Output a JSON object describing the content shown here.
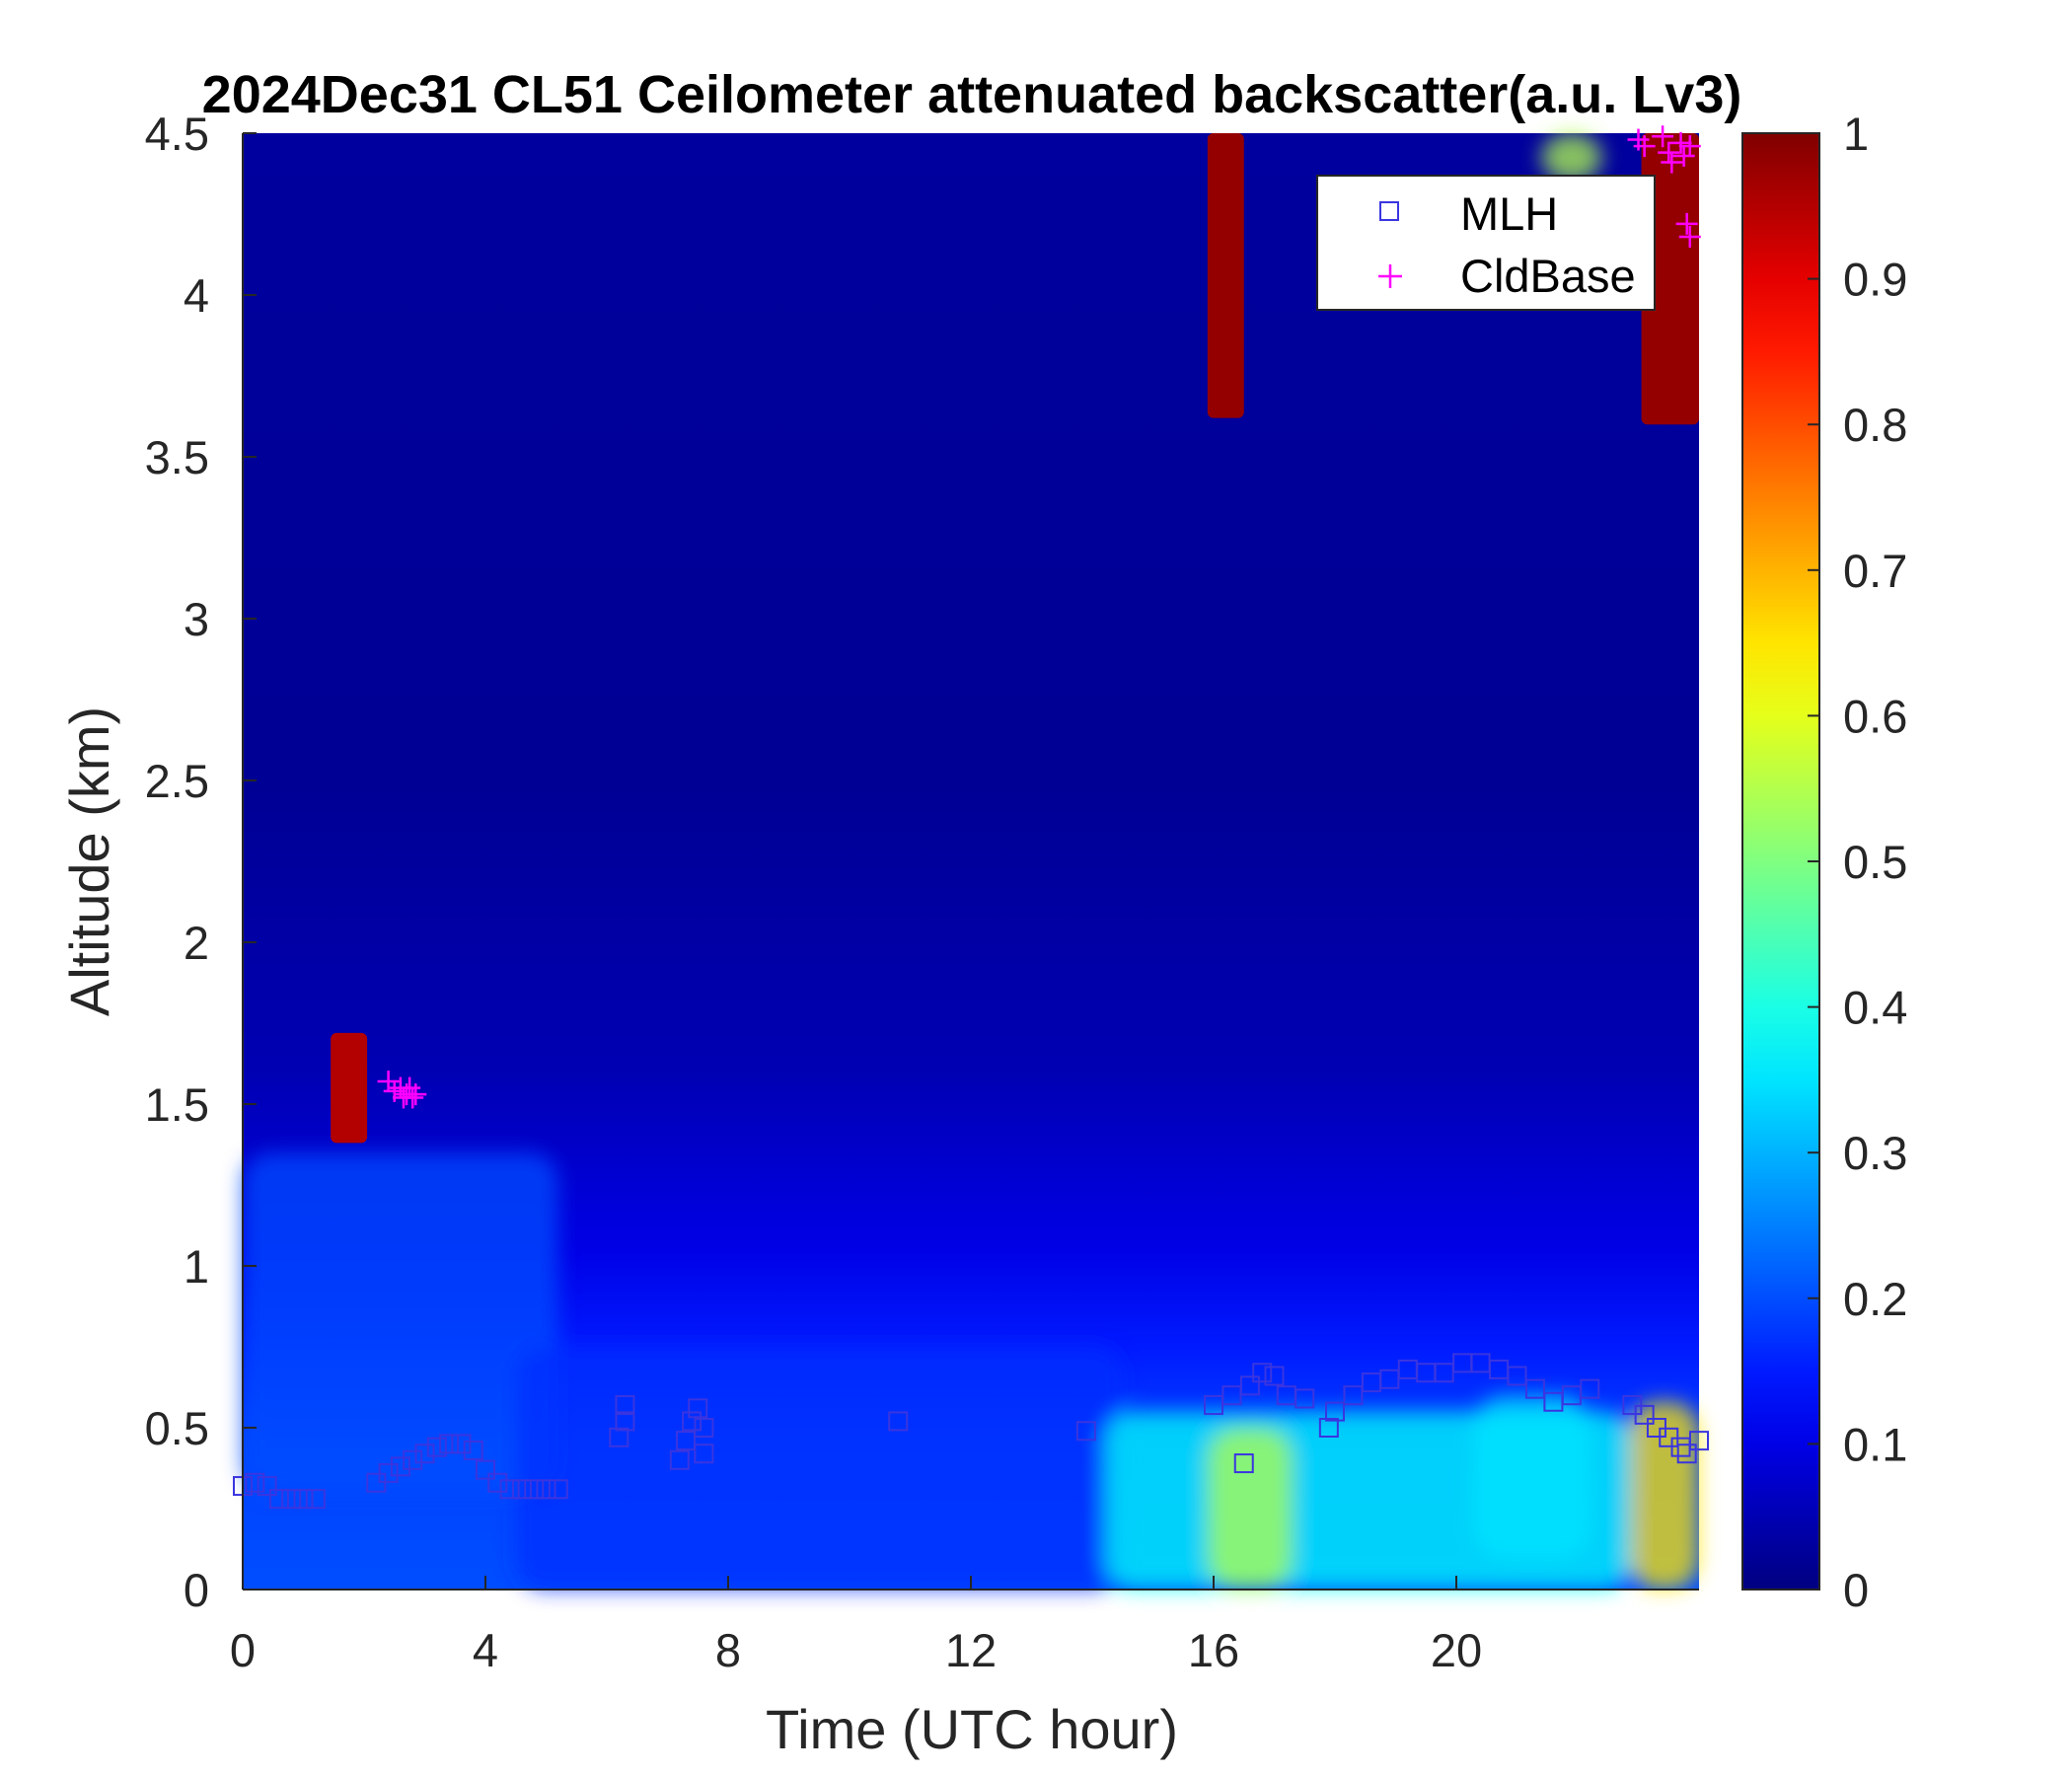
{
  "chart_data": {
    "type": "heatmap",
    "title": "2024Dec31 CL51 Ceilometer attenuated backscatter(a.u. Lv3)",
    "xlabel": "Time (UTC hour)",
    "ylabel": "Altitude (km)",
    "xlim": [
      0,
      24
    ],
    "ylim": [
      0,
      4.5
    ],
    "x_ticks": [
      0,
      4,
      8,
      12,
      16,
      20
    ],
    "x_tick_labels": [
      "0",
      "4",
      "8",
      "12",
      "16",
      "20"
    ],
    "y_ticks": [
      0,
      0.5,
      1,
      1.5,
      2,
      2.5,
      3,
      3.5,
      4,
      4.5
    ],
    "y_tick_labels": [
      "0",
      "0.5",
      "1",
      "1.5",
      "2",
      "2.5",
      "3",
      "3.5",
      "4",
      "4.5"
    ],
    "colorbar": {
      "colormap": "jet",
      "range": [
        0,
        1
      ],
      "ticks": [
        0,
        0.1,
        0.2,
        0.3,
        0.4,
        0.5,
        0.6,
        0.7,
        0.8,
        0.9,
        1
      ],
      "tick_labels": [
        "0",
        "0.1",
        "0.2",
        "0.3",
        "0.4",
        "0.5",
        "0.6",
        "0.7",
        "0.8",
        "0.9",
        "1"
      ]
    },
    "legend": {
      "placement": "top-right",
      "entries": [
        {
          "label": "MLH",
          "marker": "square",
          "color": "#3a35e0"
        },
        {
          "label": "CldBase",
          "marker": "plus",
          "color": "#ff00ff"
        }
      ]
    },
    "background_profile": [
      {
        "alt": 0.0,
        "value": 0.2
      },
      {
        "alt": 0.45,
        "value": 0.19
      },
      {
        "alt": 0.75,
        "value": 0.15
      },
      {
        "alt": 1.05,
        "value": 0.1
      },
      {
        "alt": 1.6,
        "value": 0.05
      },
      {
        "alt": 2.5,
        "value": 0.02
      },
      {
        "alt": 4.5,
        "value": 0.03
      }
    ],
    "features": [
      {
        "name": "early-layer",
        "x": [
          0,
          5.2
        ],
        "alt": [
          0.3,
          1.35
        ],
        "value": 0.2
      },
      {
        "name": "low-layer-morning",
        "x": [
          4.5,
          14.5
        ],
        "alt": [
          0,
          0.75
        ],
        "value": 0.17
      },
      {
        "name": "aerosol-band-16",
        "x": [
          14.2,
          22.9
        ],
        "alt": [
          0,
          0.55
        ],
        "value": 0.38
      },
      {
        "name": "aerosol-peak-16.6",
        "x": [
          15.9,
          17.3
        ],
        "alt": [
          0,
          0.5
        ],
        "value": 0.55
      },
      {
        "name": "aerosol-peak-20.5",
        "x": [
          20.3,
          22.2
        ],
        "alt": [
          0.1,
          0.6
        ],
        "value": 0.35
      },
      {
        "name": "aerosol-end",
        "x": [
          22.85,
          24
        ],
        "alt": [
          0,
          0.58
        ],
        "value": 0.65
      },
      {
        "name": "cloud-1.5km",
        "x": [
          1.45,
          2.05
        ],
        "alt": [
          1.38,
          1.72
        ],
        "value": 0.95
      },
      {
        "name": "cloud-upper-16",
        "x": [
          15.9,
          16.5
        ],
        "alt": [
          3.62,
          4.5
        ],
        "value": 0.98
      },
      {
        "name": "cloud-upper-23",
        "x": [
          23.05,
          24
        ],
        "alt": [
          3.6,
          4.5
        ],
        "value": 0.98
      },
      {
        "name": "cloud-upper-21.6",
        "x": [
          21.4,
          22.4
        ],
        "alt": [
          4.35,
          4.5
        ],
        "value": 0.55
      }
    ],
    "series": [
      {
        "name": "MLH",
        "marker": "square",
        "color": "#3a35e0",
        "points": [
          {
            "x": 0.0,
            "y": 0.32
          },
          {
            "x": 0.2,
            "y": 0.33
          },
          {
            "x": 0.4,
            "y": 0.32
          },
          {
            "x": 0.6,
            "y": 0.28
          },
          {
            "x": 0.8,
            "y": 0.28
          },
          {
            "x": 1.0,
            "y": 0.28
          },
          {
            "x": 1.2,
            "y": 0.28
          },
          {
            "x": 2.2,
            "y": 0.33
          },
          {
            "x": 2.4,
            "y": 0.36
          },
          {
            "x": 2.6,
            "y": 0.38
          },
          {
            "x": 2.8,
            "y": 0.4
          },
          {
            "x": 3.0,
            "y": 0.42
          },
          {
            "x": 3.2,
            "y": 0.44
          },
          {
            "x": 3.4,
            "y": 0.45
          },
          {
            "x": 3.6,
            "y": 0.45
          },
          {
            "x": 3.8,
            "y": 0.43
          },
          {
            "x": 4.0,
            "y": 0.37
          },
          {
            "x": 4.2,
            "y": 0.33
          },
          {
            "x": 4.4,
            "y": 0.31
          },
          {
            "x": 4.6,
            "y": 0.31
          },
          {
            "x": 4.8,
            "y": 0.31
          },
          {
            "x": 5.0,
            "y": 0.31
          },
          {
            "x": 5.2,
            "y": 0.31
          },
          {
            "x": 6.2,
            "y": 0.47
          },
          {
            "x": 6.3,
            "y": 0.52
          },
          {
            "x": 6.3,
            "y": 0.57
          },
          {
            "x": 7.2,
            "y": 0.4
          },
          {
            "x": 7.3,
            "y": 0.46
          },
          {
            "x": 7.4,
            "y": 0.52
          },
          {
            "x": 7.5,
            "y": 0.56
          },
          {
            "x": 7.6,
            "y": 0.42
          },
          {
            "x": 7.6,
            "y": 0.5
          },
          {
            "x": 10.8,
            "y": 0.52
          },
          {
            "x": 13.9,
            "y": 0.49
          },
          {
            "x": 16.0,
            "y": 0.57
          },
          {
            "x": 16.3,
            "y": 0.6
          },
          {
            "x": 16.5,
            "y": 0.39
          },
          {
            "x": 16.6,
            "y": 0.63
          },
          {
            "x": 16.8,
            "y": 0.67
          },
          {
            "x": 17.0,
            "y": 0.66
          },
          {
            "x": 17.2,
            "y": 0.6
          },
          {
            "x": 17.5,
            "y": 0.59
          },
          {
            "x": 17.9,
            "y": 0.5
          },
          {
            "x": 18.0,
            "y": 0.55
          },
          {
            "x": 18.3,
            "y": 0.6
          },
          {
            "x": 18.6,
            "y": 0.64
          },
          {
            "x": 18.9,
            "y": 0.65
          },
          {
            "x": 19.2,
            "y": 0.68
          },
          {
            "x": 19.5,
            "y": 0.67
          },
          {
            "x": 19.8,
            "y": 0.67
          },
          {
            "x": 20.1,
            "y": 0.7
          },
          {
            "x": 20.4,
            "y": 0.7
          },
          {
            "x": 20.7,
            "y": 0.68
          },
          {
            "x": 21.0,
            "y": 0.66
          },
          {
            "x": 21.3,
            "y": 0.62
          },
          {
            "x": 21.6,
            "y": 0.58
          },
          {
            "x": 21.9,
            "y": 0.6
          },
          {
            "x": 22.2,
            "y": 0.62
          },
          {
            "x": 22.9,
            "y": 0.57
          },
          {
            "x": 23.1,
            "y": 0.54
          },
          {
            "x": 23.3,
            "y": 0.5
          },
          {
            "x": 23.5,
            "y": 0.47
          },
          {
            "x": 23.7,
            "y": 0.44
          },
          {
            "x": 23.8,
            "y": 0.42
          },
          {
            "x": 24.0,
            "y": 0.46
          }
        ]
      },
      {
        "name": "CldBase",
        "marker": "plus",
        "color": "#ff00ff",
        "points": [
          {
            "x": 2.4,
            "y": 1.57
          },
          {
            "x": 2.5,
            "y": 1.54
          },
          {
            "x": 2.6,
            "y": 1.55
          },
          {
            "x": 2.65,
            "y": 1.52
          },
          {
            "x": 2.7,
            "y": 1.53
          },
          {
            "x": 2.75,
            "y": 1.55
          },
          {
            "x": 2.8,
            "y": 1.52
          },
          {
            "x": 2.85,
            "y": 1.53
          },
          {
            "x": 23.0,
            "y": 4.48
          },
          {
            "x": 23.1,
            "y": 4.46
          },
          {
            "x": 23.4,
            "y": 4.49
          },
          {
            "x": 23.5,
            "y": 4.44
          },
          {
            "x": 23.55,
            "y": 4.41
          },
          {
            "x": 23.7,
            "y": 4.47
          },
          {
            "x": 23.75,
            "y": 4.43
          },
          {
            "x": 23.85,
            "y": 4.46
          },
          {
            "x": 23.8,
            "y": 4.22
          },
          {
            "x": 23.85,
            "y": 4.18
          }
        ]
      }
    ]
  }
}
